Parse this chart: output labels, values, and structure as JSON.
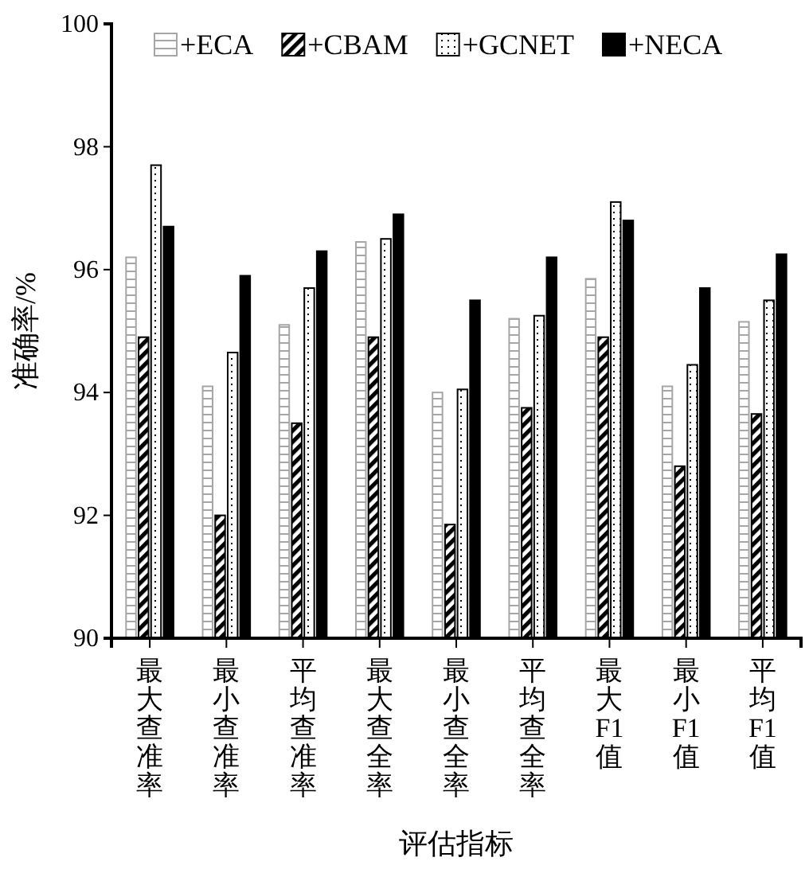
{
  "chart_data": {
    "type": "bar",
    "xlabel": "评估指标",
    "ylabel": "准确率/%",
    "categories": [
      "最大查准率",
      "最小查准率",
      "平均查准率",
      "最大查全率",
      "最小查全率",
      "平均查全率",
      "最大F1值",
      "最小F1值",
      "平均F1值"
    ],
    "series": [
      {
        "name": "+ECA",
        "color": "#a6a6a6",
        "values": [
          96.2,
          94.1,
          95.1,
          96.45,
          94.0,
          95.2,
          95.85,
          94.1,
          95.15
        ]
      },
      {
        "name": "+CBAM",
        "color": "#000000",
        "values": [
          94.9,
          92.0,
          93.5,
          94.9,
          91.85,
          93.75,
          94.9,
          92.8,
          93.65
        ]
      },
      {
        "name": "+GCNET",
        "color": "#000000",
        "values": [
          97.7,
          94.65,
          95.7,
          96.5,
          94.05,
          95.25,
          97.1,
          94.45,
          95.5
        ]
      },
      {
        "name": "+NECA",
        "color": "#000000",
        "values": [
          96.7,
          95.9,
          96.3,
          96.9,
          95.5,
          96.2,
          96.8,
          95.7,
          96.25
        ]
      }
    ],
    "ylim": [
      90,
      100
    ],
    "yticks": [
      90,
      92,
      94,
      96,
      98,
      100
    ],
    "grid": false,
    "legend": "top"
  }
}
